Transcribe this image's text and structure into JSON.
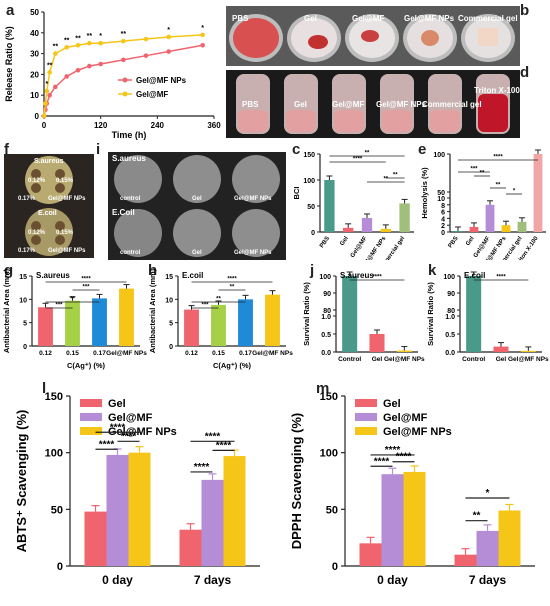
{
  "panel_letters": {
    "a": "a",
    "b": "b",
    "c": "c",
    "d": "d",
    "e": "e",
    "f": "f",
    "g": "g",
    "h": "h",
    "i": "i",
    "j": "j",
    "k": "k",
    "l": "l",
    "m": "m"
  },
  "photo_b": {
    "labels": [
      "PBS",
      "Gel",
      "Gel@MF",
      "Gel@MF NPs",
      "Commercial gel"
    ]
  },
  "photo_d": {
    "labels": [
      "PBS",
      "Gel",
      "Gel@MF",
      "Gel@MF NPs",
      "Commercial gel",
      "Triton X-100"
    ]
  },
  "photo_f": {
    "top_title": "S.aureus",
    "bottom_title": "E.coil",
    "labels": [
      "0.12%",
      "0.15%",
      "0.17%",
      "Gel@MF NPs"
    ]
  },
  "photo_i": {
    "row_labels": [
      "S.aureus",
      "E.Coil"
    ],
    "col_labels": [
      "control",
      "Gel",
      "Gel@MF NPs"
    ]
  },
  "chart_data": [
    {
      "id": "a",
      "type": "line",
      "xlabel": "Time (h)",
      "ylabel": "Release Ratio (%)",
      "xlim": [
        0,
        360
      ],
      "ylim": [
        0,
        50
      ],
      "xticks": [
        0,
        120,
        240,
        360
      ],
      "yticks": [
        0,
        10,
        20,
        30,
        40,
        50
      ],
      "x": [
        0,
        3,
        6,
        12,
        24,
        48,
        72,
        96,
        120,
        168,
        216,
        264,
        336
      ],
      "legend": "right",
      "series": [
        {
          "name": "Gel@MF NPs",
          "color": "#f0646e",
          "values": [
            0,
            3,
            6,
            10,
            14,
            19,
            22,
            24,
            25,
            27,
            29,
            31,
            34
          ]
        },
        {
          "name": "Gel@MF",
          "color": "#f5c518",
          "values": [
            0,
            6,
            12,
            21,
            30,
            33,
            34,
            35,
            35,
            36,
            37,
            38,
            39
          ]
        }
      ],
      "annotations": [
        "*",
        "**",
        "**",
        "**",
        "**",
        "**",
        "*",
        "**",
        "*",
        "*"
      ]
    },
    {
      "id": "c",
      "type": "bar",
      "ylabel": "BCI",
      "ylim": [
        0,
        150
      ],
      "yticks": [
        0,
        50,
        100,
        150
      ],
      "categories": [
        "PBS",
        "Gel",
        "Gel@MF",
        "Gel@MF NPs",
        "commercial gel"
      ],
      "values": [
        100,
        8,
        27,
        6,
        55
      ],
      "colors": [
        "#4a9a8a",
        "#f0646e",
        "#b58cd6",
        "#f5c518",
        "#9fbf7a"
      ],
      "annotations": [
        "****",
        "**",
        "**",
        "**"
      ]
    },
    {
      "id": "e",
      "type": "bar",
      "ylabel": "Hemolysis (%)",
      "ylim": [
        0,
        100
      ],
      "ytick_labels": [
        "0",
        "2",
        "4",
        "6",
        "8",
        "10",
        "50",
        "100"
      ],
      "categories": [
        "PBS",
        "Gel",
        "Gel@MF",
        "Gel@MF NPs",
        "commercial gel",
        "Triton X-100"
      ],
      "values": [
        0.3,
        1.5,
        8,
        2,
        3,
        100
      ],
      "colors": [
        "#4a9a8a",
        "#f0646e",
        "#b58cd6",
        "#f5c518",
        "#9fbf7a",
        "#f2a5a5"
      ],
      "annotations": [
        "****",
        "***",
        "**",
        "**",
        "*",
        "ns"
      ]
    },
    {
      "id": "g",
      "type": "bar",
      "title": "S.aureus",
      "xlabel": "C(Ag⁺) (%)",
      "ylabel": "Antibacterial Area (mm)",
      "ylim": [
        0,
        15
      ],
      "yticks": [
        0,
        5,
        10,
        15
      ],
      "categories": [
        "0.12",
        "0.15",
        "0.17",
        "Gel@MF NPs"
      ],
      "values": [
        8.3,
        9.7,
        10.2,
        12.3
      ],
      "colors": [
        "#f0646e",
        "#a6d046",
        "#1f8ad6",
        "#f5c518"
      ],
      "annotations": [
        "**",
        "***",
        "****",
        "***"
      ]
    },
    {
      "id": "h",
      "type": "bar",
      "title": "E.coil",
      "xlabel": "C(Ag⁺) (%)",
      "ylabel": "Antibacterial Area (mm)",
      "ylim": [
        0,
        15
      ],
      "yticks": [
        0,
        5,
        10,
        15
      ],
      "categories": [
        "0.12",
        "0.15",
        "0.17",
        "Gel@MF NPs"
      ],
      "values": [
        7.8,
        8.8,
        10.0,
        11.0
      ],
      "colors": [
        "#f0646e",
        "#a6d046",
        "#1f8ad6",
        "#f5c518"
      ],
      "annotations": [
        "**",
        "***",
        "****",
        "**"
      ]
    },
    {
      "id": "j",
      "type": "bar",
      "title": "S.aureus",
      "ylabel": "Survival Ratio (%)",
      "ylim": [
        0,
        100
      ],
      "ytick_labels": [
        "0.0",
        "0.5",
        "1.0",
        "80",
        "90",
        "100"
      ],
      "categories": [
        "Control",
        "Gel",
        "Gel@MF NPs"
      ],
      "values": [
        100,
        0.5,
        0.04
      ],
      "colors": [
        "#4a9a8a",
        "#f0646e",
        "#f5c518"
      ],
      "annotations": [
        "****"
      ]
    },
    {
      "id": "k",
      "type": "bar",
      "title": "E.coil",
      "ylabel": "Survival Ratio (%)",
      "ylim": [
        0,
        100
      ],
      "ytick_labels": [
        "0.0",
        "0.5",
        "1.0",
        "80",
        "90",
        "100"
      ],
      "categories": [
        "Control",
        "Gel",
        "Gel@MF NPs"
      ],
      "values": [
        100,
        0.15,
        0.03
      ],
      "colors": [
        "#4a9a8a",
        "#f0646e",
        "#f5c518"
      ],
      "annotations": [
        "****"
      ]
    },
    {
      "id": "l",
      "type": "bar",
      "ylabel": "ABTS⁺ Scavenging (%)",
      "ylim": [
        0,
        150
      ],
      "yticks": [
        0,
        50,
        100,
        150
      ],
      "categories": [
        "0 day",
        "7 days"
      ],
      "legend": "top-left",
      "series": [
        {
          "name": "Gel",
          "color": "#f0646e",
          "values": [
            48,
            32
          ]
        },
        {
          "name": "Gel@MF",
          "color": "#b58cd6",
          "values": [
            98,
            76
          ]
        },
        {
          "name": "Gel@MF NPs",
          "color": "#f5c518",
          "values": [
            100,
            97
          ]
        }
      ],
      "annotations": [
        "****",
        "****",
        "****",
        "****",
        "****",
        "****"
      ]
    },
    {
      "id": "m",
      "type": "bar",
      "ylabel": "DPPH Scavenging (%)",
      "ylim": [
        0,
        150
      ],
      "yticks": [
        0,
        50,
        100,
        150
      ],
      "categories": [
        "0 day",
        "7 days"
      ],
      "legend": "top-left",
      "series": [
        {
          "name": "Gel",
          "color": "#f0646e",
          "values": [
            20,
            10
          ]
        },
        {
          "name": "Gel@MF",
          "color": "#b58cd6",
          "values": [
            81,
            31
          ]
        },
        {
          "name": "Gel@MF NPs",
          "color": "#f5c518",
          "values": [
            83,
            49
          ]
        }
      ],
      "annotations": [
        "****",
        "****",
        "****",
        "**",
        "*"
      ]
    }
  ]
}
